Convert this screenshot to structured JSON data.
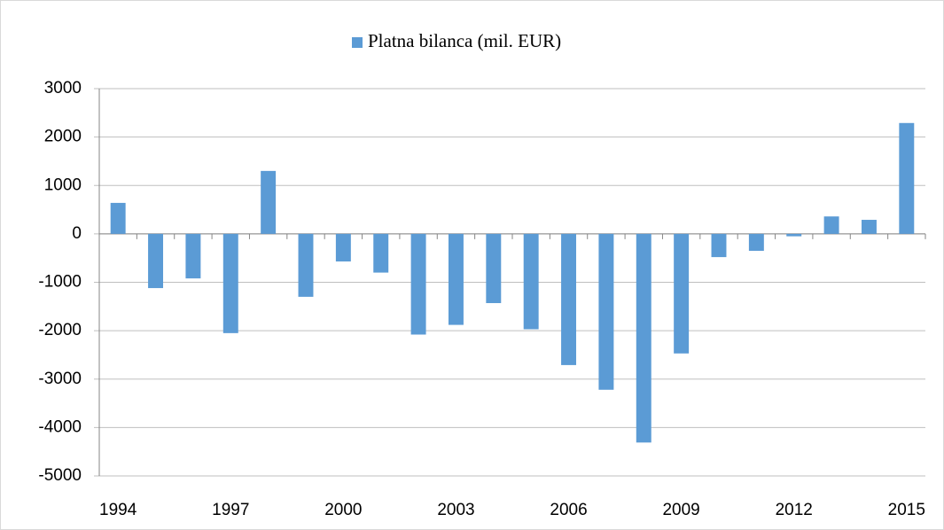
{
  "chart_data": {
    "type": "bar",
    "categories": [
      "1994",
      null,
      null,
      "1997",
      null,
      null,
      "2000",
      null,
      null,
      "2003",
      null,
      null,
      "2006",
      null,
      null,
      "2009",
      null,
      null,
      "2012",
      null,
      null,
      "2015"
    ],
    "series": [
      {
        "name": "Platna bilanca (mil. EUR)",
        "color": "#5b9bd5",
        "values": [
          640,
          -1120,
          -920,
          -2050,
          1300,
          -1300,
          -570,
          -800,
          -2080,
          -1880,
          -1430,
          -1970,
          -2710,
          -3220,
          -4310,
          -2470,
          -480,
          -350,
          -50,
          360,
          290,
          2290
        ]
      }
    ],
    "ylim": [
      -5000,
      3000
    ],
    "yticks": [
      -5000,
      -4000,
      -3000,
      -2000,
      -1000,
      0,
      1000,
      2000,
      3000
    ],
    "grid": true,
    "legend": "top"
  }
}
